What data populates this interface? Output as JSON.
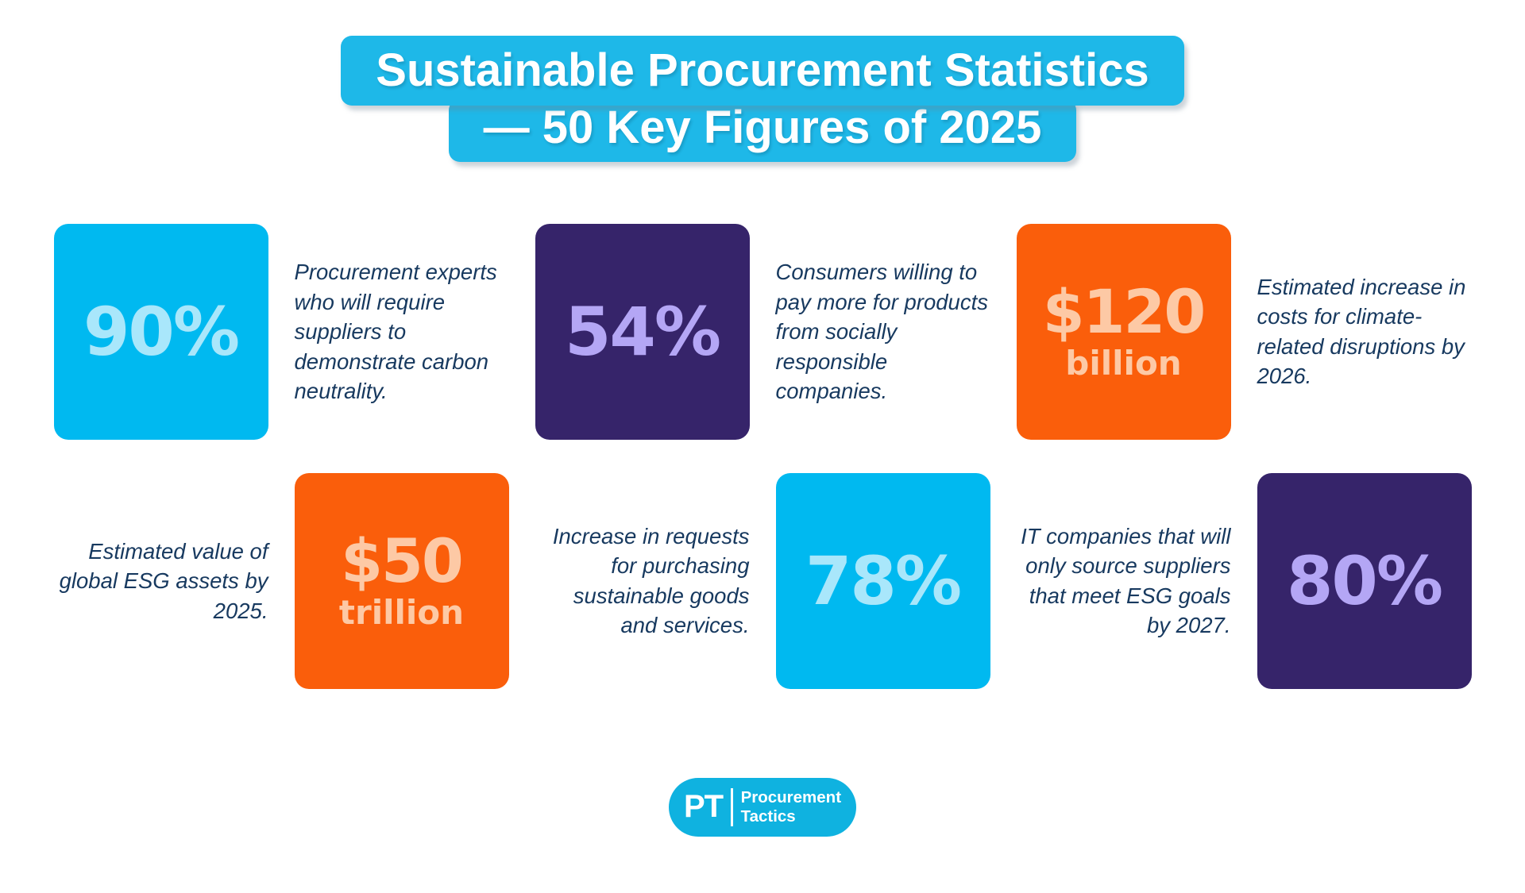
{
  "title": {
    "line1": "Sustainable Procurement Statistics",
    "line2": "— 50 Key Figures of 2025"
  },
  "stats": [
    {
      "value": "90%",
      "unit": "",
      "description": "Procurement experts who will require suppliers to demonstrate carbon neutrality.",
      "card_color": "cyan",
      "card_position": "left-of-text"
    },
    {
      "value": "54%",
      "unit": "",
      "description": "Consumers willing to pay more for products from socially responsible companies.",
      "card_color": "purple",
      "card_position": "left-of-text"
    },
    {
      "value": "$120",
      "unit": "billion",
      "description": "Estimated increase in costs for climate-related disruptions by 2026.",
      "card_color": "orange",
      "card_position": "left-of-text"
    },
    {
      "value": "$50",
      "unit": "trillion",
      "description": "Estimated value of global ESG assets by 2025.",
      "card_color": "orange",
      "card_position": "right-of-text"
    },
    {
      "value": "78%",
      "unit": "",
      "description": "Increase in requests for purchasing sustainable goods and services.",
      "card_color": "cyan",
      "card_position": "right-of-text"
    },
    {
      "value": "80%",
      "unit": "",
      "description": "IT companies that will only source suppliers that meet ESG goals by 2027.",
      "card_color": "purple",
      "card_position": "right-of-text"
    }
  ],
  "chart_data": {
    "type": "table",
    "title": "Sustainable Procurement Statistics — 50 Key Figures of 2025",
    "categories": [
      "Procurement experts who will require suppliers to demonstrate carbon neutrality.",
      "Consumers willing to pay more for products from socially responsible companies.",
      "Estimated increase in costs for climate-related disruptions by 2026.",
      "Estimated value of global ESG assets by 2025.",
      "Increase in requests for purchasing sustainable goods and services.",
      "IT companies that will only source suppliers that meet ESG goals by 2027."
    ],
    "values": [
      "90%",
      "54%",
      "$120 billion",
      "$50 trillion",
      "78%",
      "80%"
    ]
  },
  "colors": {
    "title_banner": "#1eb8e8",
    "card_cyan": "#00b9f0",
    "card_cyan_number": "#a9e7fb",
    "card_purple": "#36246a",
    "card_purple_number": "#b4a6f5",
    "card_orange": "#fa5e0b",
    "card_orange_number": "#fdc9a5",
    "body_text": "#17395f",
    "logo_background": "#0fb2e0"
  },
  "logo": {
    "abbr": "PT",
    "name_line1": "Procurement",
    "name_line2": "Tactics"
  }
}
